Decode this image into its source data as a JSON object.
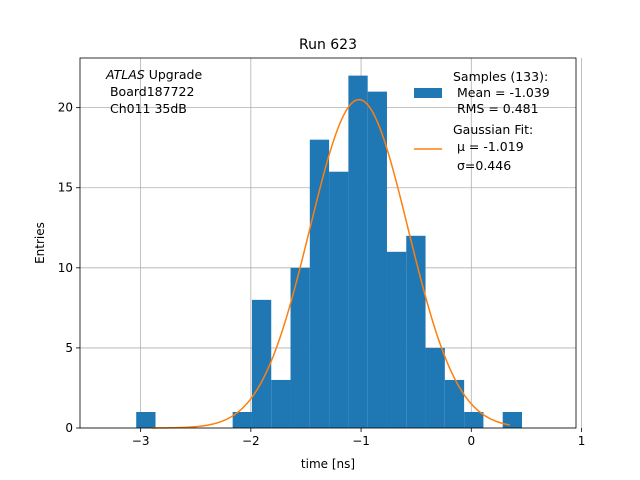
{
  "chart_data": {
    "type": "bar",
    "title": "Run 623",
    "xlabel": "time [ns]",
    "ylabel": "Entries",
    "xlim": [
      -3.55,
      0.95
    ],
    "ylim": [
      0,
      23.1
    ],
    "xticks": [
      -3,
      -2,
      -1,
      0,
      1
    ],
    "xtick_labels": [
      "−3",
      "−2",
      "−1",
      "0",
      "1"
    ],
    "yticks": [
      0,
      5,
      10,
      15,
      20
    ],
    "ytick_labels": [
      "0",
      "5",
      "10",
      "15",
      "20"
    ],
    "grid": true,
    "legend_position": "top-right",
    "annotation": {
      "italic": "ATLAS",
      "line1_rest": " Upgrade",
      "line2": " Board187722",
      "line3": " Ch011 35dB"
    },
    "histogram": {
      "bin_edges": [
        -3.04,
        -2.865,
        -2.69,
        -2.515,
        -2.34,
        -2.165,
        -1.99,
        -1.815,
        -1.64,
        -1.465,
        -1.29,
        -1.115,
        -0.94,
        -0.765,
        -0.59,
        -0.415,
        -0.24,
        -0.065,
        0.11,
        0.285,
        0.46
      ],
      "counts": [
        1,
        0,
        0,
        0,
        0,
        1,
        8,
        3,
        10,
        18,
        16,
        22,
        21,
        11,
        12,
        5,
        3,
        1,
        0,
        1
      ],
      "color": "#1f77b4",
      "legend_lines": [
        "Samples (133):",
        " Mean = -1.039",
        " RMS = 0.481"
      ]
    },
    "gaussian_fit": {
      "amplitude": 20.5,
      "mu": -1.019,
      "sigma": 0.446,
      "x_range": [
        -2.9,
        0.35
      ],
      "color": "#ff7f0e",
      "legend_line1": "Gaussian Fit:",
      "legend_mu_label": " μ = -1.019",
      "legend_sigma_label": " σ=0.446"
    }
  }
}
